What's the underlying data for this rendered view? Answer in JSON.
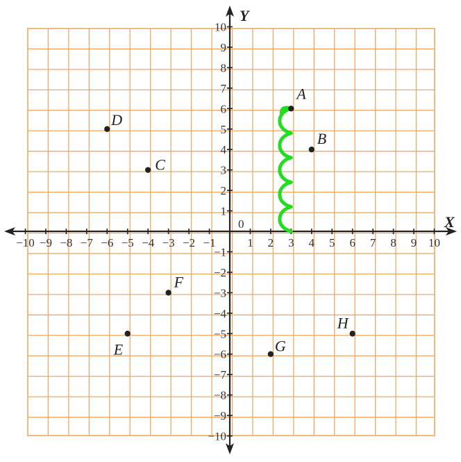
{
  "chart_data": {
    "type": "scatter",
    "x_axis_label": "X",
    "y_axis_label": "Y",
    "origin_label": "0",
    "xlim": [
      -10,
      10
    ],
    "ylim": [
      -10,
      10
    ],
    "grid": true,
    "x_ticks": [
      "−10",
      "−9",
      "−8",
      "−7",
      "−6",
      "−5",
      "−4",
      "−3",
      "−2",
      "−1",
      "1",
      "2",
      "3",
      "4",
      "5",
      "6",
      "7",
      "8",
      "9",
      "10"
    ],
    "y_ticks": [
      "10",
      "9",
      "8",
      "7",
      "6",
      "5",
      "4",
      "3",
      "2",
      "1",
      "−1",
      "−2",
      "−3",
      "−4",
      "−5",
      "−6",
      "−7",
      "−8",
      "−9",
      "−10"
    ],
    "points": [
      {
        "label": "A",
        "x": 3,
        "y": 6
      },
      {
        "label": "B",
        "x": 4,
        "y": 4
      },
      {
        "label": "C",
        "x": -4,
        "y": 3
      },
      {
        "label": "D",
        "x": -6,
        "y": 5
      },
      {
        "label": "E",
        "x": -5,
        "y": -5
      },
      {
        "label": "F",
        "x": -3,
        "y": -3
      },
      {
        "label": "G",
        "x": 2,
        "y": -6
      },
      {
        "label": "H",
        "x": 6,
        "y": -5
      }
    ],
    "annotation": {
      "type": "wavy-line",
      "color": "#22dd22",
      "from": {
        "x": 3,
        "y": 0
      },
      "to": {
        "x": 3,
        "y": 6
      }
    }
  },
  "colors": {
    "grid": "#f0a860",
    "axis": "#222222",
    "point": "#222222"
  }
}
